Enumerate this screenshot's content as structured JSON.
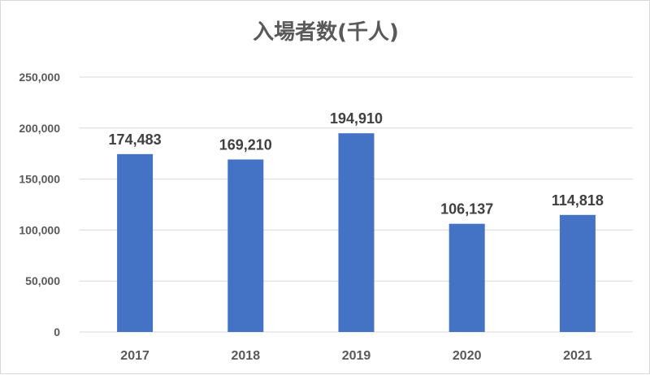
{
  "chart_data": {
    "type": "bar",
    "title": "入場者数(千人)",
    "categories": [
      "2017",
      "2018",
      "2019",
      "2020",
      "2021"
    ],
    "values": [
      174483,
      169210,
      194910,
      106137,
      114818
    ],
    "data_labels": [
      "174,483",
      "169,210",
      "194,910",
      "106,137",
      "114,818"
    ],
    "yticks": [
      0,
      50000,
      100000,
      150000,
      200000,
      250000
    ],
    "ytick_labels": [
      "0",
      "50,000",
      "100,000",
      "150,000",
      "200,000",
      "250,000"
    ],
    "ylim": [
      0,
      250000
    ],
    "xlabel": "",
    "ylabel": "",
    "grid": true,
    "legend": "none",
    "bar_color": "#4472c4",
    "grid_color": "#d9d9d9"
  }
}
